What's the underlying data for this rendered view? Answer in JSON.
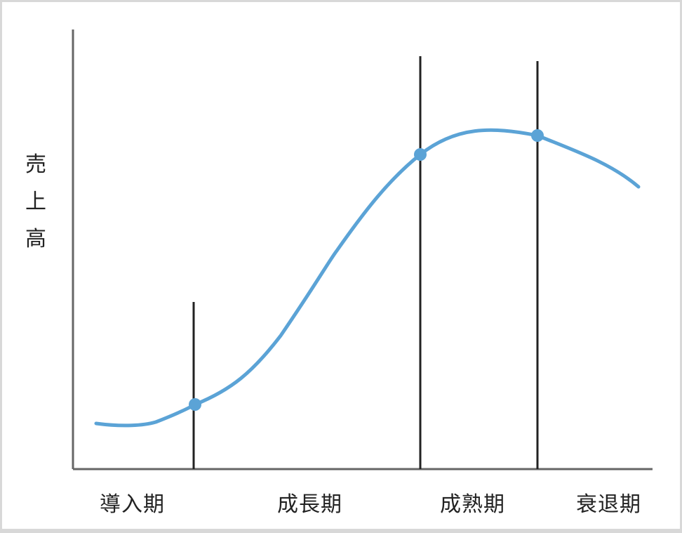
{
  "diagram": {
    "y_axis_label": [
      "売",
      "上",
      "高"
    ],
    "phases": [
      {
        "key": "introduction",
        "label": "導入期"
      },
      {
        "key": "growth",
        "label": "成長期"
      },
      {
        "key": "maturity",
        "label": "成熟期"
      },
      {
        "key": "decline",
        "label": "衰退期"
      }
    ],
    "curve_color": "#5ba3d6",
    "divider_color": "#222222",
    "axis_color": "#666666"
  }
}
